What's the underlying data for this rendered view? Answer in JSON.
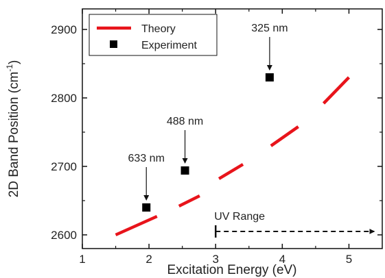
{
  "chart_data": {
    "type": "line",
    "xlabel": "Excitation Energy (eV)",
    "ylabel_main": "2D Band Position (cm",
    "ylabel_sup": "-1",
    "ylabel_close": ")",
    "xlim": [
      1,
      5.5
    ],
    "ylim": [
      2580,
      2930
    ],
    "x_ticks": [
      1,
      2,
      3,
      4,
      5
    ],
    "y_ticks": [
      2600,
      2700,
      2800,
      2900
    ],
    "grid": false,
    "legend_position": "top-left",
    "series": [
      {
        "name": "Theory",
        "style": "dashed-line",
        "color": "#e8141b",
        "segments": [
          {
            "x": [
              1.5,
              2.12
            ],
            "y": [
              2600,
              2627
            ]
          },
          {
            "x": [
              2.45,
              2.76
            ],
            "y": [
              2642,
              2657
            ]
          },
          {
            "x": [
              3.05,
              3.41
            ],
            "y": [
              2682,
              2703
            ]
          },
          {
            "x": [
              3.83,
              4.24
            ],
            "y": [
              2730,
              2758
            ]
          },
          {
            "x": [
              4.62,
              5.0
            ],
            "y": [
              2792,
              2830
            ]
          }
        ]
      },
      {
        "name": "Experiment",
        "style": "markers",
        "color": "#000000",
        "x": [
          1.96,
          2.54,
          3.81
        ],
        "y": [
          2640,
          2694,
          2830
        ]
      }
    ],
    "annotations": [
      {
        "text": "633 nm",
        "x": 1.96,
        "y": 2640
      },
      {
        "text": "488 nm",
        "x": 2.54,
        "y": 2694
      },
      {
        "text": "325 nm",
        "x": 3.81,
        "y": 2830
      }
    ],
    "range_marker": {
      "text": "UV Range",
      "x_start": 3.0,
      "x_end": 5.4,
      "y": 2605
    }
  }
}
